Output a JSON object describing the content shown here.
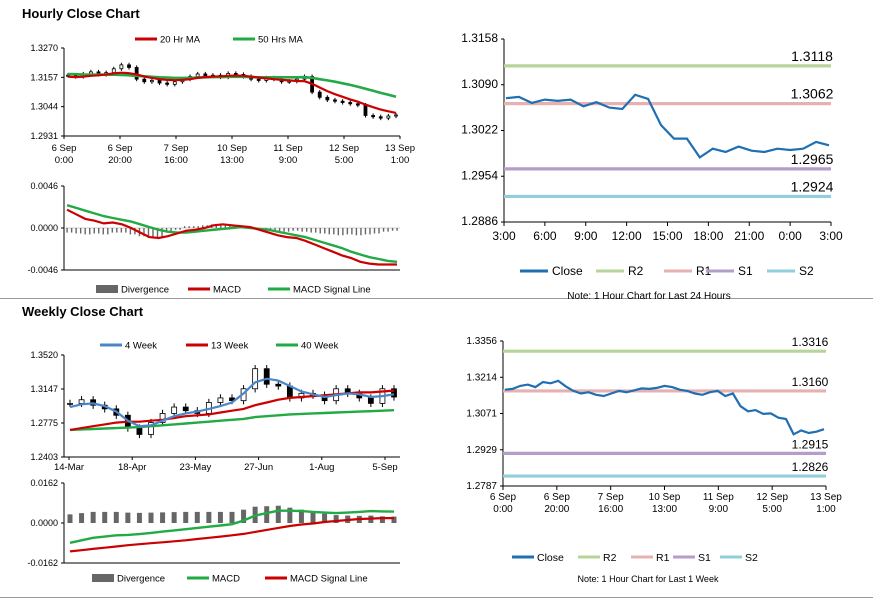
{
  "sections": {
    "hourly_title": "Hourly Close Chart",
    "weekly_title": "Weekly Close Chart"
  },
  "colors": {
    "ma_short": "#cc0000",
    "ma_long": "#22aa44",
    "ma_4w": "#4a86c8",
    "close": "#1f6fb2",
    "r2": "#b7d49a",
    "r1": "#e7b1b1",
    "s1": "#b59dc9",
    "s2": "#92cddc",
    "divergence": "#666666",
    "price": "#000000"
  },
  "chart_data": [
    {
      "id": "hourly_price",
      "type": "candlestick",
      "legend": [
        "20 Hr MA",
        "50 Hrs MA"
      ],
      "y_ticks": [
        "1.3270",
        "1.3157",
        "1.3044",
        "1.2931"
      ],
      "ylim": [
        1.2931,
        1.327
      ],
      "x_ticks": [
        [
          "6 Sep",
          "0:00"
        ],
        [
          "6 Sep",
          "20:00"
        ],
        [
          "7 Sep",
          "16:00"
        ],
        [
          "10 Sep",
          "13:00"
        ],
        [
          "11 Sep",
          "9:00"
        ],
        [
          "12 Sep",
          "5:00"
        ],
        [
          "13 Sep",
          "1:00"
        ]
      ],
      "close": [
        1.3165,
        1.316,
        1.317,
        1.3178,
        1.3168,
        1.3175,
        1.319,
        1.3205,
        1.3195,
        1.315,
        1.314,
        1.3145,
        1.3135,
        1.313,
        1.314,
        1.315,
        1.316,
        1.317,
        1.3162,
        1.3165,
        1.3158,
        1.3172,
        1.3168,
        1.316,
        1.315,
        1.3145,
        1.3155,
        1.315,
        1.314,
        1.3142,
        1.315,
        1.316,
        1.31,
        1.308,
        1.307,
        1.3065,
        1.306,
        1.3055,
        1.305,
        1.301,
        1.3005,
        1.3,
        1.3008,
        1.3012
      ],
      "ma20": [
        1.316,
        1.3158,
        1.316,
        1.3163,
        1.3165,
        1.3168,
        1.3172,
        1.3175,
        1.3173,
        1.3168,
        1.316,
        1.3155,
        1.315,
        1.3147,
        1.3146,
        1.3147,
        1.315,
        1.3155,
        1.3158,
        1.316,
        1.3161,
        1.3163,
        1.3164,
        1.3163,
        1.316,
        1.3156,
        1.3153,
        1.315,
        1.3147,
        1.3145,
        1.3143,
        1.3142,
        1.3132,
        1.3118,
        1.3104,
        1.3092,
        1.3082,
        1.3072,
        1.3063,
        1.3052,
        1.3042,
        1.3033,
        1.3026,
        1.302
      ],
      "ma50": [
        1.317,
        1.3169,
        1.3168,
        1.3167,
        1.3167,
        1.3167,
        1.3167,
        1.3166,
        1.3165,
        1.3163,
        1.3161,
        1.3159,
        1.3157,
        1.3156,
        1.3155,
        1.3155,
        1.3155,
        1.3156,
        1.3157,
        1.3158,
        1.3158,
        1.3159,
        1.3159,
        1.3159,
        1.3158,
        1.3157,
        1.3157,
        1.3157,
        1.3157,
        1.3157,
        1.3157,
        1.3158,
        1.3155,
        1.315,
        1.3145,
        1.314,
        1.3134,
        1.3128,
        1.3121,
        1.3113,
        1.3105,
        1.3097,
        1.309,
        1.3082
      ]
    },
    {
      "id": "hourly_macd",
      "type": "line+bar",
      "legend": [
        "Divergence",
        "MACD",
        "MACD Signal Line"
      ],
      "y_ticks": [
        "0.0046",
        "0.0000",
        "-0.0046"
      ],
      "ylim": [
        -0.0046,
        0.0046
      ],
      "macd": [
        0.002,
        0.0015,
        0.001,
        0.0008,
        0.0005,
        0.0006,
        0.0004,
        0.0,
        -0.0005,
        -0.001,
        -0.0011,
        -0.0009,
        -0.0006,
        -0.0003,
        -0.0002,
        0.0,
        0.0003,
        0.0004,
        0.0003,
        0.0002,
        0.0001,
        -0.0002,
        -0.0005,
        -0.0008,
        -0.001,
        -0.0011,
        -0.0014,
        -0.0018,
        -0.0022,
        -0.0026,
        -0.003,
        -0.0033,
        -0.0037,
        -0.0039,
        -0.004,
        -0.004,
        -0.004
      ],
      "signal": [
        0.0025,
        0.0022,
        0.0019,
        0.0016,
        0.0013,
        0.0011,
        0.0009,
        0.0007,
        0.0004,
        0.0001,
        -0.0002,
        -0.0004,
        -0.0005,
        -0.0005,
        -0.0004,
        -0.0003,
        -0.0002,
        -0.0001,
        0.0,
        0.0001,
        0.0,
        -0.0001,
        -0.0002,
        -0.0004,
        -0.0006,
        -0.0008,
        -0.001,
        -0.0013,
        -0.0016,
        -0.0019,
        -0.0022,
        -0.0026,
        -0.0029,
        -0.0032,
        -0.0034,
        -0.0036,
        -0.0037
      ],
      "divergence": [
        -0.0005,
        -0.0006,
        -0.0007,
        -0.0006,
        -0.0007,
        -0.0005,
        -0.0005,
        -0.0007,
        -0.0009,
        -0.0011,
        -0.001,
        -0.0005,
        -0.0002,
        0.0002,
        0.0002,
        0.0003,
        0.0004,
        0.0004,
        0.0003,
        0.0001,
        0.0001,
        -0.0001,
        -0.0003,
        -0.0004,
        -0.0004,
        -0.0003,
        -0.0004,
        -0.0005,
        -0.0006,
        -0.0007,
        -0.0008,
        -0.0007,
        -0.0008,
        -0.0007,
        -0.0006,
        -0.0004,
        -0.0003
      ]
    },
    {
      "id": "hourly_levels",
      "type": "line",
      "y_ticks": [
        "1.3158",
        "1.3090",
        "1.3022",
        "1.2954",
        "1.2886"
      ],
      "ylim": [
        1.2886,
        1.3158
      ],
      "x_ticks": [
        "3:00",
        "6:00",
        "9:00",
        "12:00",
        "15:00",
        "18:00",
        "21:00",
        "0:00",
        "3:00"
      ],
      "close": [
        1.307,
        1.3072,
        1.3063,
        1.3068,
        1.3066,
        1.3068,
        1.3058,
        1.3064,
        1.3056,
        1.3054,
        1.3075,
        1.3069,
        1.303,
        1.301,
        1.301,
        1.2982,
        1.2995,
        1.299,
        1.2998,
        1.2992,
        1.299,
        1.2995,
        1.2993,
        1.2995,
        1.3005,
        1.3
      ],
      "levels": [
        {
          "name": "R2",
          "value": 1.3118,
          "label": "1.3118"
        },
        {
          "name": "R1",
          "value": 1.3062,
          "label": "1.3062"
        },
        {
          "name": "S1",
          "value": 1.2965,
          "label": "1.2965"
        },
        {
          "name": "S2",
          "value": 1.2924,
          "label": "1.2924"
        }
      ],
      "legend": [
        "Close",
        "R2",
        "R1",
        "S1",
        "S2"
      ],
      "note": "Note: 1 Hour Chart for Last 24 Hours"
    },
    {
      "id": "weekly_price",
      "type": "candlestick",
      "legend": [
        "4 Week",
        "13 Week",
        "40 Week"
      ],
      "y_ticks": [
        "1.3520",
        "1.3147",
        "1.2775",
        "1.2403"
      ],
      "ylim": [
        1.2403,
        1.352
      ],
      "x_ticks": [
        "14-Mar",
        "18-Apr",
        "23-May",
        "27-Jun",
        "1-Aug",
        "5-Sep"
      ],
      "close": [
        1.299,
        1.303,
        1.297,
        1.293,
        1.286,
        1.272,
        1.265,
        1.278,
        1.288,
        1.295,
        1.291,
        1.288,
        1.3,
        1.305,
        1.302,
        1.315,
        1.337,
        1.32,
        1.318,
        1.305,
        1.31,
        1.308,
        1.302,
        1.315,
        1.31,
        1.305,
        1.299,
        1.315,
        1.306
      ],
      "ma4": [
        1.295,
        1.298,
        1.299,
        1.296,
        1.29,
        1.28,
        1.274,
        1.275,
        1.28,
        1.285,
        1.288,
        1.29,
        1.293,
        1.296,
        1.3,
        1.31,
        1.322,
        1.326,
        1.324,
        1.318,
        1.312,
        1.309,
        1.306,
        1.308,
        1.31,
        1.309,
        1.306,
        1.307,
        1.309
      ],
      "ma13": [
        1.27,
        1.272,
        1.274,
        1.276,
        1.278,
        1.279,
        1.279,
        1.28,
        1.281,
        1.283,
        1.285,
        1.286,
        1.287,
        1.289,
        1.291,
        1.293,
        1.297,
        1.3,
        1.303,
        1.305,
        1.306,
        1.307,
        1.308,
        1.309,
        1.31,
        1.311,
        1.311,
        1.312,
        1.313
      ],
      "ma40": [
        1.27,
        1.2705,
        1.271,
        1.2715,
        1.272,
        1.2725,
        1.273,
        1.274,
        1.275,
        1.276,
        1.277,
        1.278,
        1.279,
        1.28,
        1.281,
        1.282,
        1.284,
        1.285,
        1.286,
        1.287,
        1.2875,
        1.288,
        1.2885,
        1.289,
        1.2895,
        1.29,
        1.2905,
        1.291,
        1.2915
      ]
    },
    {
      "id": "weekly_macd",
      "type": "line+bar",
      "legend": [
        "Divergence",
        "MACD",
        "MACD Signal Line"
      ],
      "y_ticks": [
        "0.0162",
        "0.0000",
        "-0.0162"
      ],
      "ylim": [
        -0.0162,
        0.0162
      ],
      "macd": [
        -0.008,
        -0.007,
        -0.006,
        -0.0055,
        -0.005,
        -0.0048,
        -0.0045,
        -0.004,
        -0.0035,
        -0.003,
        -0.0025,
        -0.002,
        -0.0015,
        -0.001,
        -0.0005,
        0.001,
        0.003,
        0.004,
        0.005,
        0.005,
        0.0048,
        0.0045,
        0.0042,
        0.004,
        0.0042,
        0.0045,
        0.0048,
        0.0047,
        0.0046
      ],
      "signal": [
        -0.0115,
        -0.011,
        -0.0105,
        -0.01,
        -0.0095,
        -0.009,
        -0.0086,
        -0.0082,
        -0.0078,
        -0.0074,
        -0.007,
        -0.0065,
        -0.006,
        -0.0055,
        -0.005,
        -0.0044,
        -0.0036,
        -0.0028,
        -0.002,
        -0.0012,
        -0.0006,
        -0.0002,
        0.0004,
        0.0008,
        0.0012,
        0.0016,
        0.0018,
        0.002,
        0.002
      ],
      "divergence": [
        0.0035,
        0.004,
        0.0045,
        0.0045,
        0.0045,
        0.0042,
        0.0041,
        0.0042,
        0.0043,
        0.0044,
        0.0045,
        0.0045,
        0.0045,
        0.0045,
        0.0045,
        0.0054,
        0.0066,
        0.0068,
        0.007,
        0.0062,
        0.0054,
        0.0047,
        0.0038,
        0.0032,
        0.003,
        0.0029,
        0.003,
        0.0027,
        0.0026
      ]
    },
    {
      "id": "weekly_levels",
      "type": "line",
      "y_ticks": [
        "1.3356",
        "1.3214",
        "1.3071",
        "1.2929",
        "1.2787"
      ],
      "ylim": [
        1.2787,
        1.3356
      ],
      "x_ticks": [
        [
          "6 Sep",
          "0:00"
        ],
        [
          "6 Sep",
          "20:00"
        ],
        [
          "7 Sep",
          "16:00"
        ],
        [
          "10 Sep",
          "13:00"
        ],
        [
          "11 Sep",
          "9:00"
        ],
        [
          "12 Sep",
          "5:00"
        ],
        [
          "13 Sep",
          "1:00"
        ]
      ],
      "close": [
        1.3165,
        1.3168,
        1.318,
        1.3185,
        1.3175,
        1.3195,
        1.319,
        1.32,
        1.3178,
        1.316,
        1.315,
        1.3155,
        1.3145,
        1.314,
        1.315,
        1.316,
        1.3155,
        1.3162,
        1.317,
        1.3168,
        1.3172,
        1.318,
        1.3175,
        1.3165,
        1.316,
        1.315,
        1.3145,
        1.3155,
        1.316,
        1.314,
        1.315,
        1.31,
        1.308,
        1.3085,
        1.307,
        1.3072,
        1.3055,
        1.305,
        1.299,
        1.3005,
        1.2995,
        1.3,
        1.301
      ],
      "levels": [
        {
          "name": "R2",
          "value": 1.3316,
          "label": "1.3316"
        },
        {
          "name": "R1",
          "value": 1.316,
          "label": "1.3160"
        },
        {
          "name": "S1",
          "value": 1.2915,
          "label": "1.2915"
        },
        {
          "name": "S2",
          "value": 1.2826,
          "label": "1.2826"
        }
      ],
      "legend": [
        "Close",
        "R2",
        "R1",
        "S1",
        "S2"
      ],
      "note": "Note: 1 Hour Chart for Last 1 Week"
    }
  ]
}
